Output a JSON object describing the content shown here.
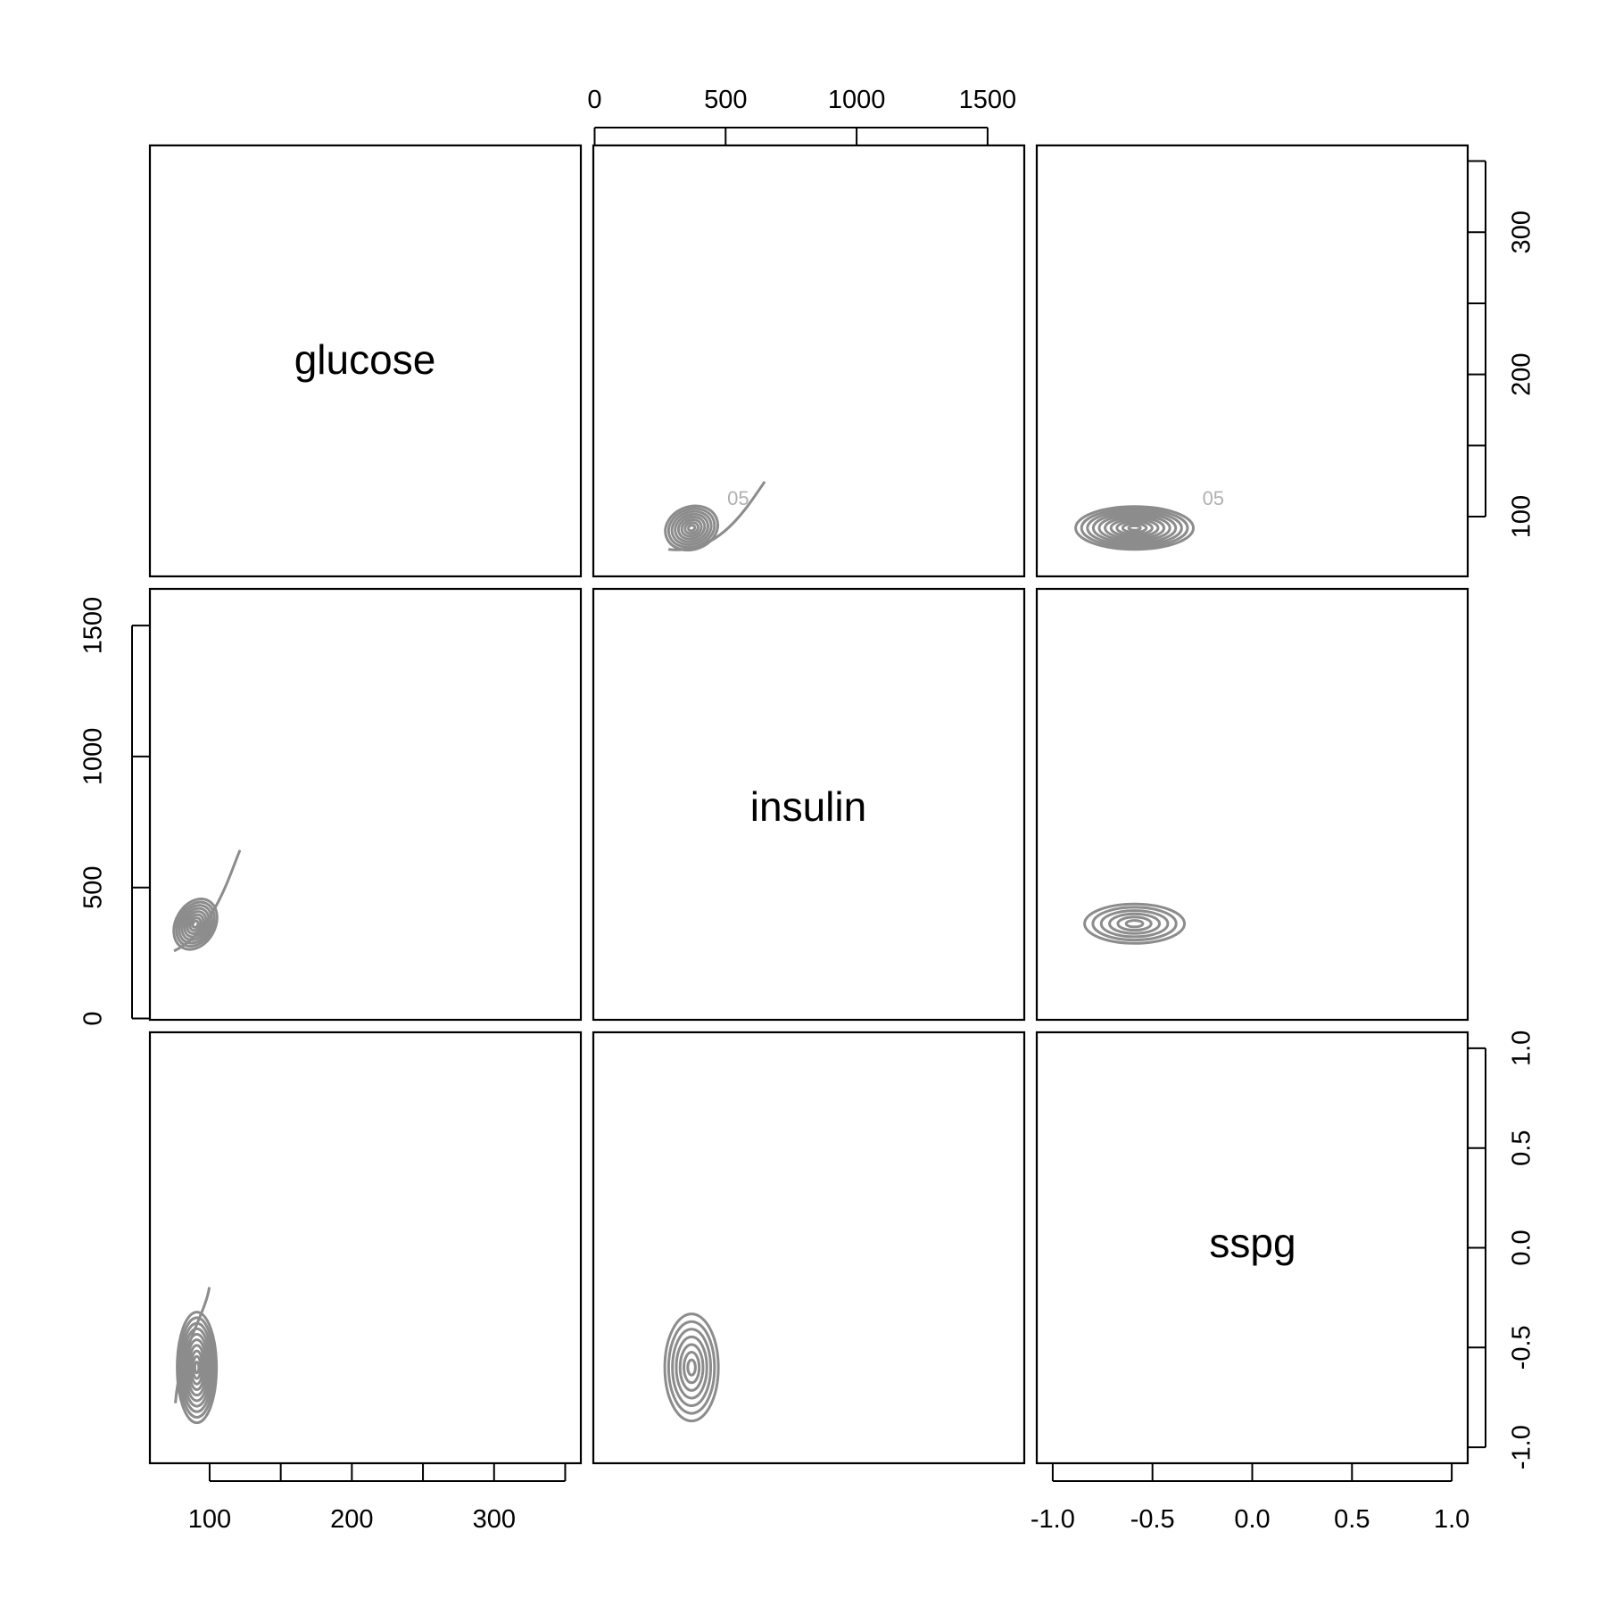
{
  "chart_data": {
    "type": "contour",
    "variables": [
      "glucose",
      "insulin",
      "sspg"
    ],
    "axes": {
      "glucose": {
        "ticks": [
          100,
          150,
          200,
          250,
          300,
          350
        ],
        "tick_labels": [
          "100",
          "200",
          "300"
        ],
        "labeled_values": [
          100,
          200,
          300
        ],
        "range": [
          58,
          361
        ]
      },
      "insulin": {
        "ticks": [
          0,
          500,
          1000,
          1500
        ],
        "tick_labels": [
          "0",
          "500",
          "1000",
          "1500"
        ],
        "labeled_values": [
          0,
          500,
          1000,
          1500
        ],
        "range": [
          -5,
          1640
        ]
      },
      "sspg": {
        "ticks": [
          -1.0,
          -0.5,
          0.0,
          0.5,
          1.0
        ],
        "tick_labels": [
          "-1.0",
          "-0.5",
          "0.0",
          "0.5",
          "1.0"
        ],
        "labeled_values": [
          -1.0,
          -0.5,
          0.0,
          0.5,
          1.0
        ],
        "range": [
          -1.08,
          1.08
        ]
      }
    },
    "axis_sides": {
      "top": "insulin",
      "right_top": "glucose",
      "right_bottom": "sspg",
      "left_middle": "insulin",
      "bottom_left": "glucose",
      "bottom_right": "sspg"
    },
    "panels": [
      {
        "row": 0,
        "col": 1,
        "x": "insulin",
        "y": "glucose",
        "center": [
          370,
          92
        ],
        "labels": [
          "05"
        ]
      },
      {
        "row": 0,
        "col": 2,
        "x": "sspg",
        "y": "glucose",
        "center": [
          -0.59,
          92
        ],
        "labels": [
          "05"
        ]
      },
      {
        "row": 1,
        "col": 0,
        "x": "glucose",
        "y": "insulin",
        "center": [
          90,
          360
        ],
        "labels": []
      },
      {
        "row": 1,
        "col": 2,
        "x": "sspg",
        "y": "insulin",
        "center": [
          -0.59,
          362
        ],
        "labels": []
      },
      {
        "row": 2,
        "col": 0,
        "x": "glucose",
        "y": "sspg",
        "center": [
          91,
          -0.6
        ],
        "labels": []
      },
      {
        "row": 2,
        "col": 1,
        "x": "insulin",
        "y": "sspg",
        "center": [
          370,
          -0.6
        ],
        "labels": []
      }
    ],
    "grid": false,
    "legend": "none"
  }
}
